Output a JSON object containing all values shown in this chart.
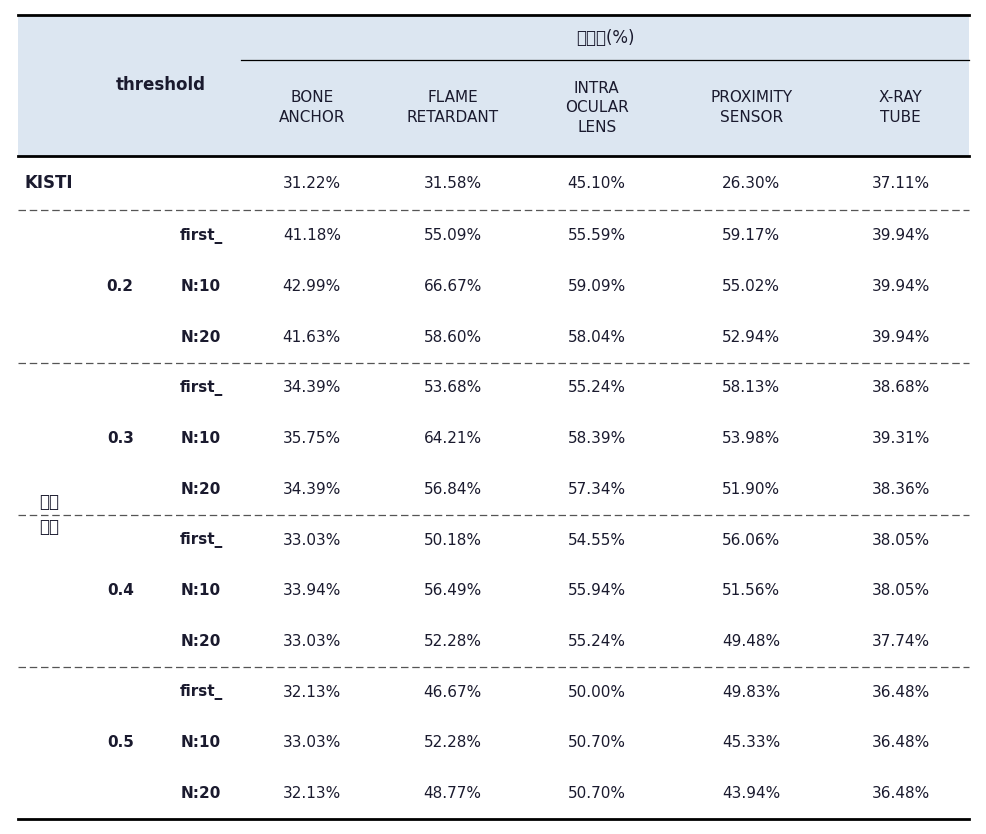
{
  "header_top": "일치율(%)",
  "col_headers": [
    "BONE\nANCHOR",
    "FLAME\nRETARDANT",
    "INTRA\nOCULAR\nLENS",
    "PROXIMITY\nSENSOR",
    "X-RAY\nTUBE"
  ],
  "row_header_col1": "threshold",
  "kisti_label": "KISTI",
  "kisti_values": [
    "31.22%",
    "31.58%",
    "45.10%",
    "26.30%",
    "37.11%"
  ],
  "model_label": "모형\n결과",
  "thresholds": [
    "0.2",
    "0.3",
    "0.4",
    "0.5"
  ],
  "sub_rows": [
    "first_",
    "N:10",
    "N:20"
  ],
  "data": {
    "0.2": {
      "first_": [
        "41.18%",
        "55.09%",
        "55.59%",
        "59.17%",
        "39.94%"
      ],
      "N:10": [
        "42.99%",
        "66.67%",
        "59.09%",
        "55.02%",
        "39.94%"
      ],
      "N:20": [
        "41.63%",
        "58.60%",
        "58.04%",
        "52.94%",
        "39.94%"
      ]
    },
    "0.3": {
      "first_": [
        "34.39%",
        "53.68%",
        "55.24%",
        "58.13%",
        "38.68%"
      ],
      "N:10": [
        "35.75%",
        "64.21%",
        "58.39%",
        "53.98%",
        "39.31%"
      ],
      "N:20": [
        "34.39%",
        "56.84%",
        "57.34%",
        "51.90%",
        "38.36%"
      ]
    },
    "0.4": {
      "first_": [
        "33.03%",
        "50.18%",
        "54.55%",
        "56.06%",
        "38.05%"
      ],
      "N:10": [
        "33.94%",
        "56.49%",
        "55.94%",
        "51.56%",
        "38.05%"
      ],
      "N:20": [
        "33.03%",
        "52.28%",
        "55.24%",
        "49.48%",
        "37.74%"
      ]
    },
    "0.5": {
      "first_": [
        "32.13%",
        "46.67%",
        "50.00%",
        "49.83%",
        "36.48%"
      ],
      "N:10": [
        "33.03%",
        "52.28%",
        "50.70%",
        "45.33%",
        "36.48%"
      ],
      "N:20": [
        "32.13%",
        "48.77%",
        "50.70%",
        "43.94%",
        "36.48%"
      ]
    }
  },
  "header_bg": "#dce6f1",
  "body_bg": "#ffffff",
  "text_color": "#1a1a2e",
  "font_size": 11,
  "header_font_size": 12
}
